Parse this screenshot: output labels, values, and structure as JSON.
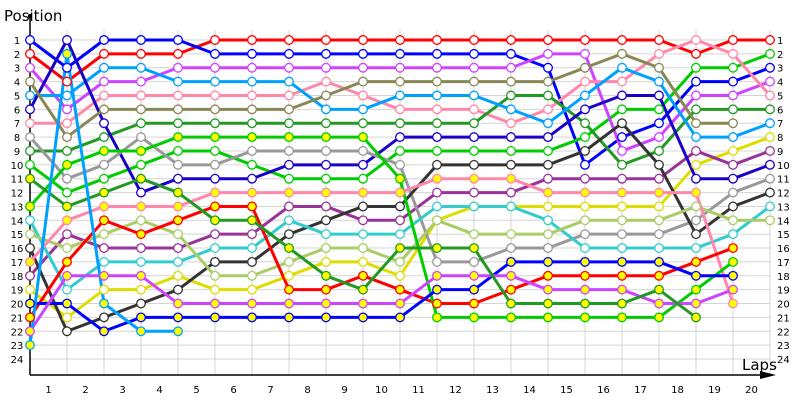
{
  "chart_data": {
    "type": "line",
    "ylabel": "Position",
    "xlabel": "Laps",
    "x_tick_labels": [
      "1",
      "2",
      "3",
      "4",
      "5",
      "6",
      "7",
      "8",
      "9",
      "10",
      "11",
      "12",
      "13",
      "14",
      "15",
      "16",
      "17",
      "18",
      "19",
      "20"
    ],
    "y_tick_labels": [
      "1",
      "2",
      "3",
      "4",
      "5",
      "6",
      "7",
      "8",
      "9",
      "10",
      "11",
      "12",
      "13",
      "14",
      "15",
      "16",
      "17",
      "18",
      "19",
      "20",
      "21",
      "22",
      "23",
      "24"
    ],
    "ylim": [
      1,
      24
    ],
    "y_inverted": true,
    "x_points": "start + end of laps 1-20",
    "grid": true,
    "marker_fill_colors": {
      "white": "#ffffff",
      "yellow": "#ffff00"
    },
    "series": [
      {
        "color": "#ff0000",
        "marker": "white",
        "values": [
          2,
          4,
          2,
          2,
          2,
          1,
          1,
          1,
          1,
          1,
          1,
          1,
          1,
          1,
          1,
          1,
          1,
          1,
          2,
          1,
          1
        ]
      },
      {
        "color": "#0000ff",
        "marker": "white",
        "values": [
          1,
          3,
          1,
          1,
          1,
          2,
          2,
          2,
          2,
          2,
          2,
          2,
          2,
          2,
          3,
          10,
          8,
          7,
          4,
          4,
          3
        ]
      },
      {
        "color": "#00cc00",
        "marker": "white",
        "values": [
          10,
          12,
          11,
          10,
          9,
          9,
          10,
          11,
          11,
          11,
          9,
          9,
          9,
          9,
          9,
          8,
          6,
          6,
          3,
          3,
          2
        ]
      },
      {
        "color": "#cc44ff",
        "marker": "white",
        "values": [
          3,
          6,
          4,
          4,
          3,
          3,
          3,
          3,
          3,
          3,
          3,
          3,
          3,
          3,
          2,
          2,
          9,
          8,
          5,
          5,
          4
        ]
      },
      {
        "color": "#ff88aa",
        "marker": "white",
        "values": [
          7,
          7,
          5,
          5,
          5,
          5,
          5,
          5,
          4,
          5,
          6,
          6,
          6,
          7,
          6,
          4,
          4,
          2,
          1,
          2,
          5
        ]
      },
      {
        "color": "#229922",
        "marker": "white",
        "values": [
          9,
          9,
          8,
          7,
          7,
          7,
          7,
          7,
          7,
          7,
          7,
          7,
          7,
          5,
          5,
          7,
          10,
          9,
          6,
          6,
          6
        ]
      },
      {
        "color": "#00a0ff",
        "marker": "white",
        "values": [
          5,
          5,
          3,
          3,
          4,
          4,
          4,
          4,
          6,
          6,
          5,
          5,
          5,
          6,
          7,
          5,
          3,
          4,
          8,
          8,
          7
        ]
      },
      {
        "color": "#dddd00",
        "marker": "white",
        "values": [
          19,
          21,
          19,
          19,
          18,
          19,
          19,
          18,
          17,
          17,
          18,
          14,
          13,
          13,
          13,
          13,
          13,
          13,
          10,
          9,
          8
        ]
      },
      {
        "color": "#993399",
        "marker": "white",
        "values": [
          18,
          15,
          16,
          16,
          16,
          15,
          15,
          13,
          13,
          14,
          14,
          12,
          12,
          12,
          11,
          11,
          11,
          11,
          9,
          10,
          9
        ]
      },
      {
        "color": "#1a00c8",
        "marker": "white",
        "values": [
          6,
          1,
          7,
          12,
          11,
          11,
          11,
          10,
          10,
          10,
          8,
          8,
          8,
          8,
          8,
          6,
          5,
          5,
          11,
          11,
          10
        ]
      },
      {
        "color": "#999999",
        "marker": "white",
        "values": [
          8,
          11,
          10,
          8,
          10,
          10,
          9,
          9,
          9,
          9,
          10,
          17,
          17,
          16,
          16,
          15,
          15,
          15,
          14,
          12,
          11
        ]
      },
      {
        "color": "#333333",
        "marker": "white",
        "values": [
          16,
          22,
          21,
          20,
          19,
          17,
          17,
          15,
          14,
          13,
          13,
          10,
          10,
          10,
          10,
          9,
          7,
          10,
          15,
          13,
          12
        ]
      },
      {
        "color": "#33cccc",
        "marker": "white",
        "values": [
          14,
          19,
          17,
          17,
          17,
          16,
          16,
          14,
          15,
          15,
          15,
          13,
          13,
          13,
          14,
          16,
          16,
          16,
          16,
          15,
          13
        ]
      },
      {
        "color": "#aacc66",
        "marker": "white",
        "values": [
          15,
          16,
          15,
          14,
          15,
          18,
          18,
          17,
          16,
          16,
          17,
          14,
          15,
          15,
          15,
          14,
          14,
          14,
          13,
          14,
          14
        ]
      },
      {
        "color": "#888855",
        "marker": "white",
        "values": [
          4,
          8,
          6,
          6,
          6,
          6,
          6,
          6,
          5,
          4,
          4,
          4,
          4,
          4,
          4,
          3,
          2,
          3,
          7,
          7,
          null
        ]
      },
      {
        "color": "#ff88aa",
        "marker": "yellow",
        "values": [
          17,
          14,
          13,
          13,
          13,
          12,
          12,
          12,
          12,
          12,
          12,
          11,
          11,
          11,
          12,
          12,
          12,
          12,
          12,
          20,
          null
        ]
      },
      {
        "color": "#ff0000",
        "marker": "yellow",
        "values": [
          21,
          17,
          14,
          15,
          14,
          13,
          13,
          19,
          19,
          18,
          19,
          20,
          20,
          19,
          18,
          18,
          18,
          18,
          17,
          16,
          null
        ]
      },
      {
        "color": "#00cc00",
        "marker": "yellow",
        "values": [
          13,
          10,
          9,
          9,
          8,
          8,
          8,
          8,
          8,
          8,
          11,
          21,
          21,
          21,
          21,
          21,
          21,
          21,
          19,
          17,
          null
        ]
      },
      {
        "color": "#0000ff",
        "marker": "yellow",
        "values": [
          20,
          20,
          22,
          21,
          21,
          21,
          21,
          21,
          21,
          21,
          21,
          19,
          19,
          17,
          17,
          17,
          17,
          17,
          18,
          18,
          null
        ]
      },
      {
        "color": "#cc44ff",
        "marker": "yellow",
        "values": [
          22,
          18,
          18,
          18,
          20,
          20,
          20,
          20,
          20,
          20,
          20,
          18,
          18,
          18,
          19,
          19,
          19,
          20,
          20,
          19,
          null
        ]
      },
      {
        "color": "#229922",
        "marker": "yellow",
        "values": [
          11,
          13,
          12,
          11,
          12,
          14,
          14,
          16,
          18,
          19,
          16,
          16,
          16,
          20,
          20,
          20,
          20,
          19,
          21,
          null,
          null
        ]
      },
      {
        "color": "#00a0ff",
        "marker": "yellow",
        "values": [
          23,
          2,
          20,
          22,
          22,
          null,
          null,
          null,
          null,
          null,
          null,
          null,
          null,
          null,
          null,
          null,
          null,
          null,
          null,
          null,
          null
        ]
      }
    ]
  }
}
